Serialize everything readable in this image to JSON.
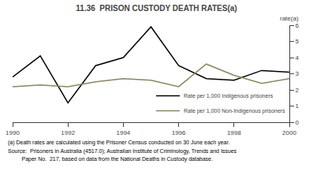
{
  "chart_data": {
    "type": "line",
    "title": "11.36  PRISON CUSTODY DEATH RATES(a)",
    "ylabel": "rate(a)",
    "x": [
      1990,
      1991,
      1992,
      1993,
      1994,
      1995,
      1996,
      1997,
      1998,
      1999,
      2000
    ],
    "series": [
      {
        "name": "Rate per 1,000 Indigenous prisoners",
        "color": "#000000",
        "values": [
          2.8,
          4.1,
          1.2,
          3.5,
          4.0,
          5.9,
          3.5,
          2.7,
          2.6,
          3.2,
          3.1
        ]
      },
      {
        "name": "Rate per 1,000 Non-Indigenous prisoners",
        "color": "#8b8560",
        "values": [
          2.2,
          2.3,
          2.2,
          2.5,
          2.7,
          2.6,
          2.2,
          3.6,
          2.9,
          2.4,
          2.7
        ]
      }
    ],
    "xlim": [
      1990,
      2000
    ],
    "xticks": [
      1990,
      1992,
      1994,
      1996,
      1998,
      2000
    ],
    "ylim": [
      0,
      6
    ],
    "yticks": [
      0,
      1,
      2,
      3,
      4,
      5,
      6
    ],
    "grid": false,
    "legend": "lower right",
    "annotations": [
      "(a) Death rates are calculated using the Prisoner Census conducted on 30 June each year.",
      "Source:  Prisoners in Australia (4517.0); Australian Institute of Criminology, Trends and Issues",
      "         Paper No.  217, based on data from the National Deaths in Custody database."
    ]
  }
}
